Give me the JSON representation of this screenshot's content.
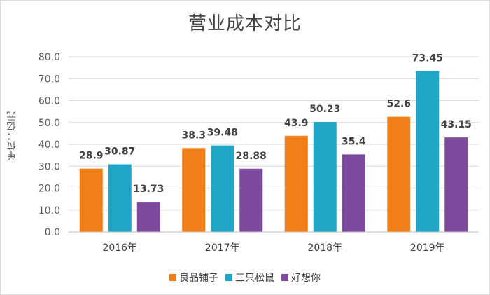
{
  "chart_data": {
    "type": "bar",
    "title": "营业成本对比",
    "ylabel": "单位：亿元",
    "xlabel": "",
    "ylim": [
      0,
      80
    ],
    "yticks": [
      "0.0",
      "10.0",
      "20.0",
      "30.0",
      "40.0",
      "50.0",
      "60.0",
      "70.0",
      "80.0"
    ],
    "grid": true,
    "legend_position": "bottom",
    "categories": [
      "2016年",
      "2017年",
      "2018年",
      "2019年"
    ],
    "series": [
      {
        "name": "良品铺子",
        "values": [
          28.9,
          38.3,
          43.9,
          52.6
        ],
        "labels": [
          "28.9",
          "38.3",
          "43.9",
          "52.6"
        ],
        "color": "#f07f1a"
      },
      {
        "name": "三只松鼠",
        "values": [
          30.87,
          39.48,
          50.23,
          73.45
        ],
        "labels": [
          "30.87",
          "39.48",
          "50.23",
          "73.45"
        ],
        "color": "#1fa6c6"
      },
      {
        "name": "好想你",
        "values": [
          13.73,
          28.88,
          35.4,
          43.15
        ],
        "labels": [
          "13.73",
          "28.88",
          "35.4",
          "43.15"
        ],
        "color": "#7d4a9e"
      }
    ]
  }
}
